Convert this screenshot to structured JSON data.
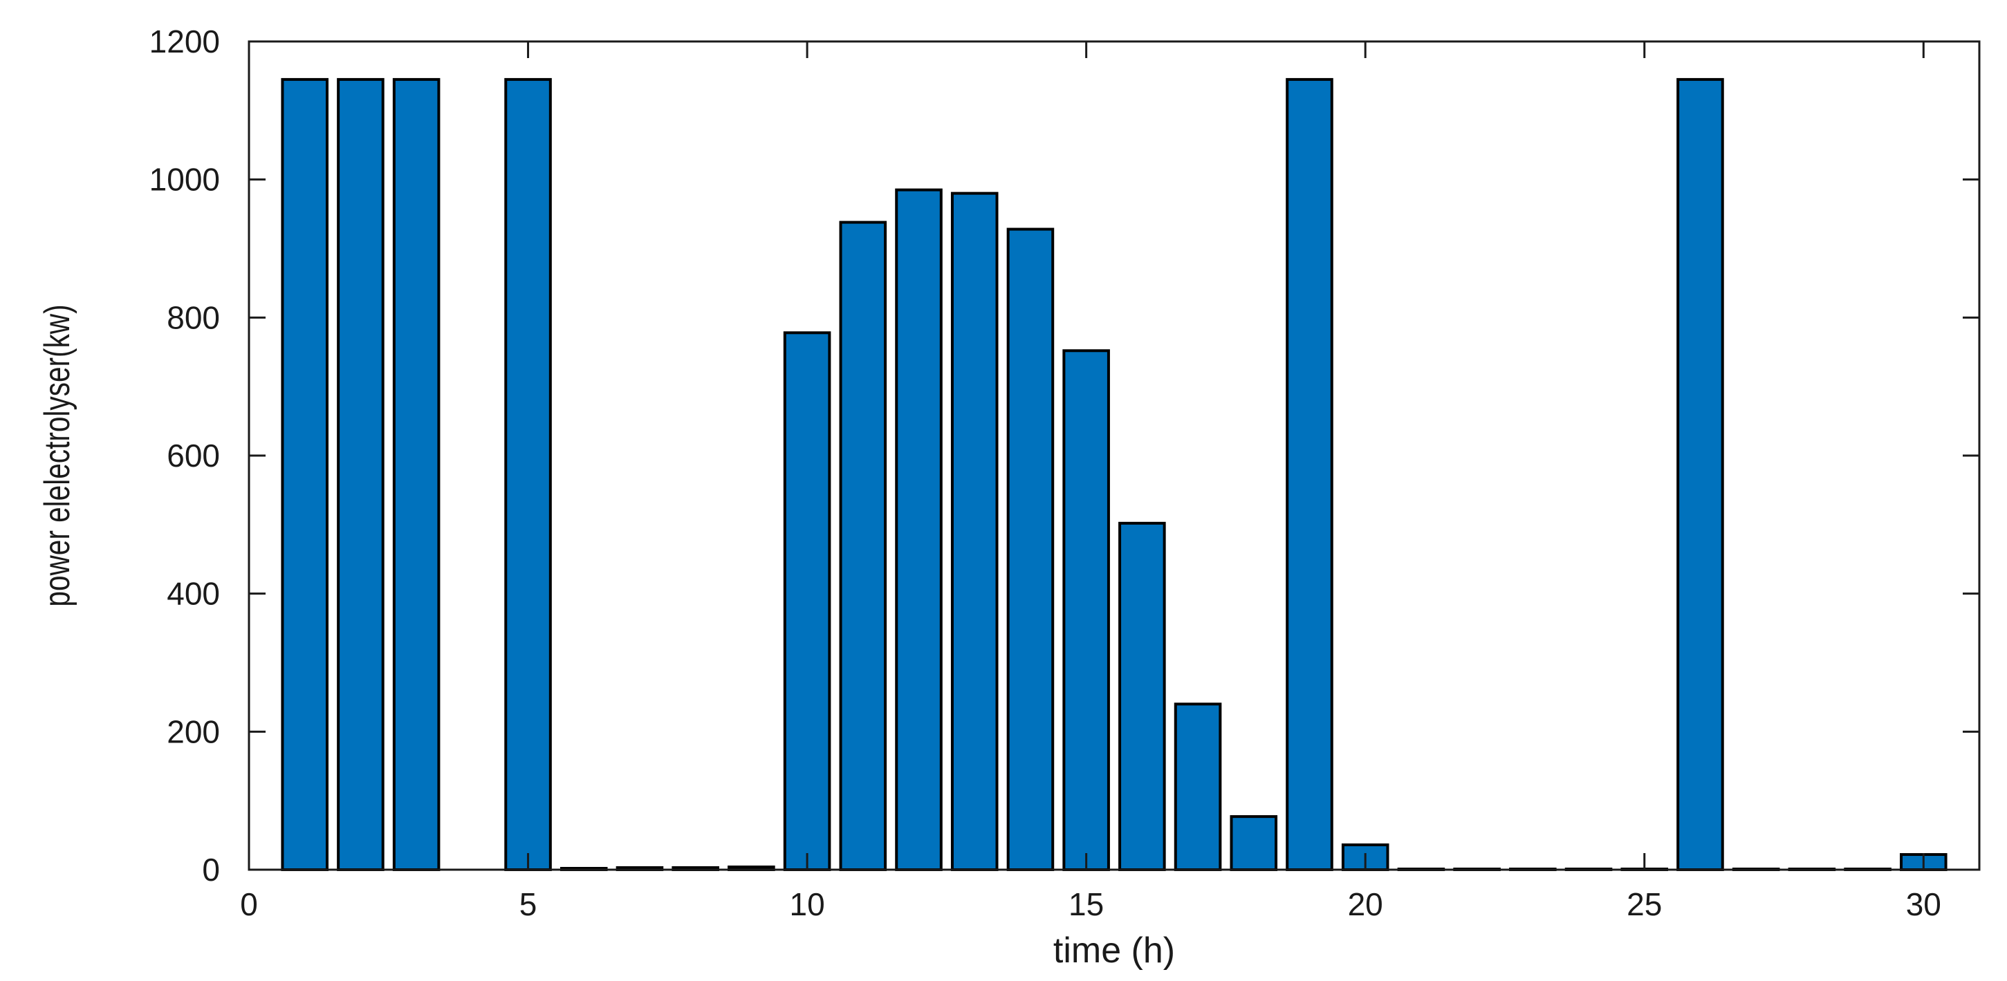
{
  "chart_data": {
    "type": "bar",
    "title": "",
    "xlabel": "time (h)",
    "ylabel": "power elelectrolyser(kw)",
    "xlim": [
      0,
      31
    ],
    "ylim": [
      0,
      1200
    ],
    "xticks": [
      0,
      5,
      10,
      15,
      20,
      25,
      30
    ],
    "yticks": [
      0,
      200,
      400,
      600,
      800,
      1000,
      1200
    ],
    "grid": false,
    "bar_color": "#0072BD",
    "edge_color": "#000000",
    "x": [
      1,
      2,
      3,
      4,
      5,
      6,
      7,
      8,
      9,
      10,
      11,
      12,
      13,
      14,
      15,
      16,
      17,
      18,
      19,
      20,
      21,
      22,
      23,
      24,
      25,
      26,
      27,
      28,
      29,
      30
    ],
    "values": [
      1145,
      1145,
      1145,
      0,
      1145,
      2,
      3,
      3,
      4,
      778,
      938,
      985,
      980,
      928,
      752,
      502,
      240,
      77,
      1145,
      36,
      1,
      1,
      1,
      1,
      1,
      1145,
      1,
      1,
      1,
      22
    ]
  }
}
